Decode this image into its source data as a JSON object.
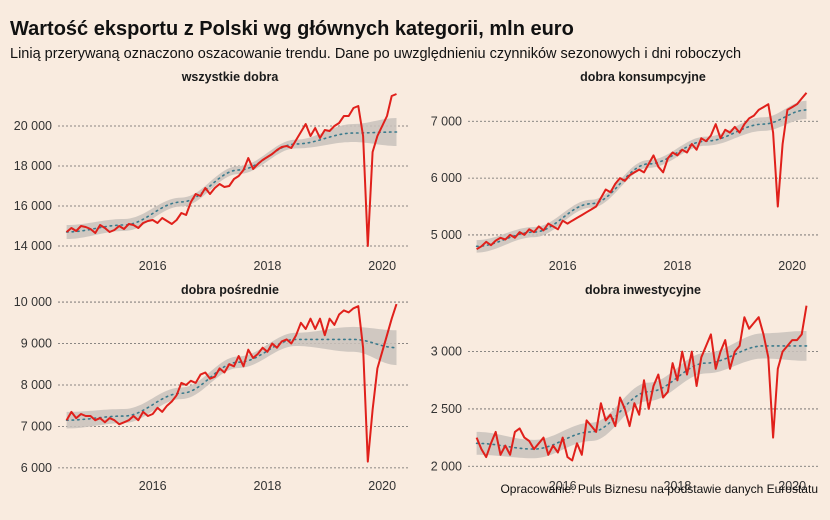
{
  "title": "Wartość eksportu z Polski wg głównych kategorii, mln euro",
  "subtitle": "Linią przerywaną oznaczono oszacowanie trendu. Dane po uwzględnieniu czynników sezonowych i dni roboczych",
  "source": "Opracowanie: Puls Biznesu na podstawie danych Eurostatu",
  "colors": {
    "background": "#f9ebdf",
    "actual": "#e0201b",
    "trend": "#3a7a8c",
    "band": "#c9c2bc",
    "grid": "#666666"
  },
  "chart_data": [
    {
      "type": "line",
      "title": "wszystkie dobra",
      "x_start": "2015-01",
      "x_end": "2020-10",
      "x_step": "month",
      "x_ticks": [
        2016,
        2018,
        2020
      ],
      "y_ticks": [
        "14 000",
        "16 000",
        "18 000",
        "20 000"
      ],
      "y_tick_values": [
        14000,
        16000,
        18000,
        20000
      ],
      "ylim": [
        13700,
        21800
      ],
      "trend": {
        "x": [
          2015.0,
          2016.0,
          2017.0,
          2018.0,
          2019.0,
          2020.0,
          2020.75
        ],
        "y": [
          14700,
          15050,
          16200,
          17800,
          19100,
          19650,
          19700
        ],
        "band": [
          350,
          300,
          220,
          200,
          220,
          450,
          700
        ]
      },
      "series": [
        {
          "values": [
            14700,
            14900,
            14750,
            15000,
            14950,
            14850,
            14650,
            15050,
            14900,
            14700,
            14800,
            15000,
            14850,
            15100,
            15050,
            14900,
            15150,
            15250,
            15300,
            15150,
            15400,
            15250,
            15100,
            15300,
            15650,
            15550,
            16200,
            16600,
            16500,
            16900,
            16600,
            16900,
            17100,
            16950,
            17000,
            17350,
            17500,
            17800,
            18400,
            17850,
            18100,
            18300,
            18450,
            18600,
            18800,
            18950,
            19000,
            18900,
            19300,
            19700,
            20100,
            19500,
            19900,
            19400,
            19800,
            19750,
            20000,
            20150,
            20500,
            20500,
            20900,
            21000,
            19500,
            14000,
            18700,
            19500,
            20000,
            20500,
            21500,
            21600
          ]
        }
      ]
    },
    {
      "type": "line",
      "title": "dobra konsumpcyjne",
      "x_start": "2015-01",
      "x_end": "2020-10",
      "x_step": "month",
      "x_ticks": [
        2016,
        2018,
        2020
      ],
      "y_ticks": [
        "5 000",
        "6 000",
        "7 000"
      ],
      "y_tick_values": [
        5000,
        6000,
        7000
      ],
      "ylim": [
        4700,
        7550
      ],
      "trend": {
        "x": [
          2015.0,
          2016.0,
          2017.0,
          2018.0,
          2019.0,
          2020.0,
          2020.75
        ],
        "y": [
          4800,
          5050,
          5550,
          6250,
          6650,
          6950,
          7200
        ],
        "band": [
          110,
          90,
          70,
          70,
          80,
          120,
          160
        ]
      },
      "series": [
        {
          "values": [
            4750,
            4800,
            4880,
            4820,
            4900,
            4950,
            4920,
            5000,
            4950,
            5050,
            5000,
            5100,
            5050,
            5150,
            5080,
            5200,
            5150,
            5100,
            5250,
            5200,
            5250,
            5300,
            5350,
            5400,
            5450,
            5500,
            5650,
            5800,
            5750,
            5900,
            6000,
            5950,
            6050,
            6100,
            6150,
            6100,
            6250,
            6400,
            6200,
            6100,
            6350,
            6450,
            6400,
            6500,
            6450,
            6600,
            6500,
            6700,
            6650,
            6750,
            6950,
            6700,
            6850,
            6800,
            6900,
            6800,
            6950,
            7050,
            7100,
            7200,
            7250,
            7300,
            6800,
            5500,
            6600,
            7200,
            7250,
            7300,
            7400,
            7500
          ]
        }
      ]
    },
    {
      "type": "line",
      "title": "dobra pośrednie",
      "x_start": "2015-01",
      "x_end": "2020-10",
      "x_step": "month",
      "x_ticks": [
        2016,
        2018,
        2020
      ],
      "y_ticks": [
        "6 000",
        "7 000",
        "8 000",
        "9 000",
        "10 000"
      ],
      "y_tick_values": [
        6000,
        7000,
        8000,
        9000,
        10000
      ],
      "ylim": [
        5900,
        10050
      ],
      "trend": {
        "x": [
          2015.0,
          2016.0,
          2017.0,
          2018.0,
          2019.0,
          2020.0,
          2020.75
        ],
        "y": [
          7150,
          7250,
          7800,
          8550,
          9100,
          9100,
          8900
        ],
        "band": [
          200,
          170,
          140,
          140,
          160,
          300,
          420
        ]
      },
      "series": [
        {
          "values": [
            7150,
            7350,
            7200,
            7300,
            7250,
            7250,
            7150,
            7200,
            7100,
            7200,
            7150,
            7050,
            7100,
            7150,
            7250,
            7150,
            7350,
            7250,
            7300,
            7450,
            7350,
            7500,
            7600,
            7750,
            8050,
            8000,
            8100,
            8050,
            8250,
            8300,
            8150,
            8200,
            8400,
            8300,
            8500,
            8450,
            8700,
            8450,
            8850,
            8650,
            8750,
            8900,
            8800,
            9000,
            8900,
            9050,
            9100,
            9000,
            9200,
            9500,
            9350,
            9600,
            9350,
            9600,
            9200,
            9600,
            9450,
            9700,
            9800,
            9750,
            9850,
            9900,
            8900,
            6150,
            7400,
            8400,
            8800,
            9200,
            9600,
            9950
          ]
        }
      ]
    },
    {
      "type": "line",
      "title": "dobra inwestycyjne",
      "x_start": "2015-01",
      "x_end": "2020-10",
      "x_step": "month",
      "x_ticks": [
        2016,
        2018,
        2020
      ],
      "y_ticks": [
        "2 000",
        "2 500",
        "3 000"
      ],
      "y_tick_values": [
        2000,
        2500,
        3000
      ],
      "ylim": [
        1950,
        3450
      ],
      "trend": {
        "x": [
          2015.0,
          2016.0,
          2017.0,
          2018.0,
          2019.0,
          2020.0,
          2020.75
        ],
        "y": [
          2200,
          2150,
          2300,
          2650,
          2900,
          3050,
          3050
        ],
        "band": [
          100,
          80,
          80,
          80,
          90,
          110,
          130
        ]
      },
      "series": [
        {
          "values": [
            2250,
            2150,
            2080,
            2200,
            2300,
            2100,
            2180,
            2100,
            2300,
            2330,
            2250,
            2220,
            2150,
            2200,
            2250,
            2100,
            2180,
            2120,
            2250,
            2080,
            2050,
            2200,
            2100,
            2400,
            2350,
            2300,
            2550,
            2400,
            2450,
            2350,
            2600,
            2500,
            2350,
            2550,
            2450,
            2750,
            2500,
            2700,
            2800,
            2600,
            2650,
            2900,
            2750,
            3000,
            2800,
            3000,
            2700,
            2950,
            3050,
            3150,
            2850,
            3000,
            3100,
            2850,
            3000,
            3050,
            3300,
            3200,
            3250,
            3300,
            3150,
            2950,
            2250,
            2850,
            3000,
            3050,
            3100,
            3100,
            3150,
            3400
          ]
        }
      ]
    }
  ]
}
